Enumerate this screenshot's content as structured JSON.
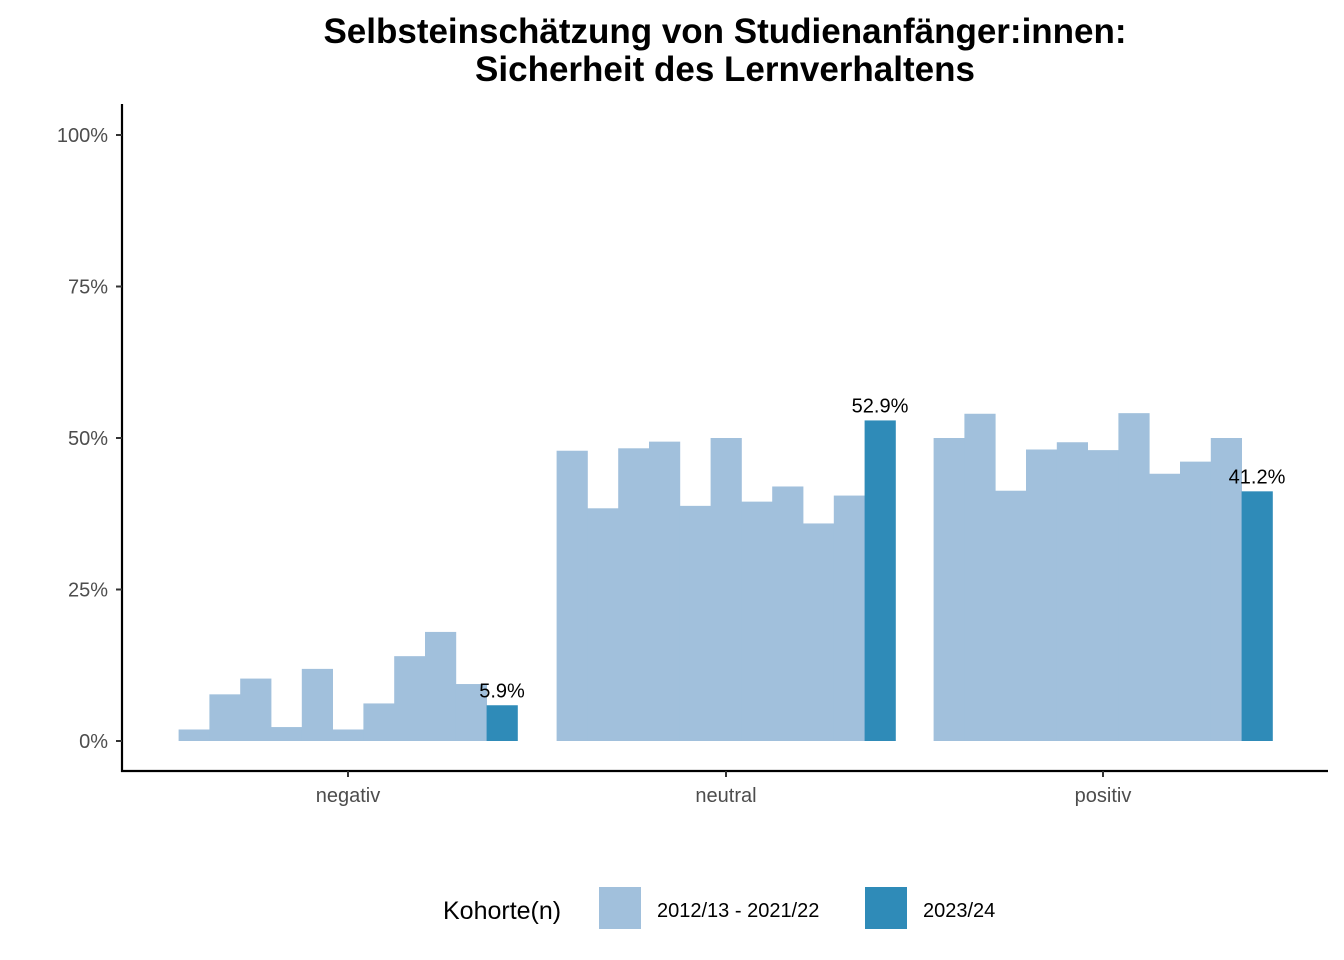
{
  "chart_data": {
    "type": "bar",
    "title": [
      "Selbsteinschätzung von Studienanfänger:innen:",
      "Sicherheit des Lernverhaltens"
    ],
    "xlabel": "",
    "ylabel": "",
    "ylim": [
      0,
      1.05
    ],
    "yticks": [
      {
        "value": 0,
        "label": "0%"
      },
      {
        "value": 0.25,
        "label": "25%"
      },
      {
        "value": 0.5,
        "label": "50%"
      },
      {
        "value": 0.75,
        "label": "75%"
      },
      {
        "value": 1.0,
        "label": "100%"
      }
    ],
    "categories": [
      "negativ",
      "neutral",
      "positiv"
    ],
    "series": [
      {
        "name": "2012/13 - 2021/22",
        "color": "#a1c0dc",
        "values": [
          [
            0.019,
            0.077,
            0.103,
            0.023,
            0.119,
            0.019,
            0.062,
            0.14,
            0.18,
            0.094
          ],
          [
            0.479,
            0.384,
            0.483,
            0.494,
            0.388,
            0.5,
            0.395,
            0.42,
            0.359,
            0.405
          ],
          [
            0.5,
            0.54,
            0.413,
            0.481,
            0.493,
            0.48,
            0.541,
            0.441,
            0.461,
            0.5
          ]
        ]
      },
      {
        "name": "2023/24",
        "color": "#2f8bb8",
        "values": [
          [
            0.059
          ],
          [
            0.529
          ],
          [
            0.412
          ]
        ],
        "labels": [
          "5.9%",
          "52.9%",
          "41.2%"
        ]
      }
    ],
    "legend": {
      "title": "Kohorte(n)",
      "position": "bottom"
    },
    "grid": false
  }
}
